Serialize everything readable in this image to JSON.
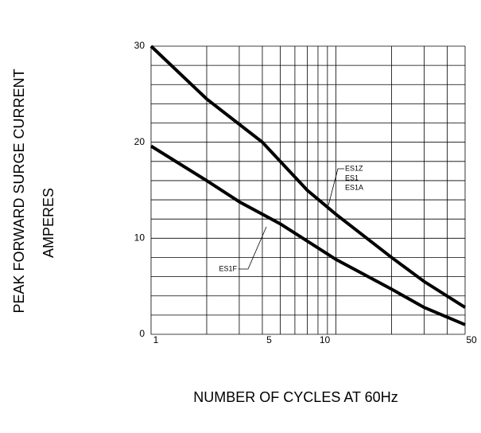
{
  "chart_data": {
    "type": "line",
    "xlabel": "NUMBER OF CYCLES AT 60Hz",
    "ylabel": [
      "PEAK FORWARD SURGE CURRENT",
      "AMPERES"
    ],
    "xscale": "log",
    "xlim": [
      1,
      50
    ],
    "xticks": [
      1,
      5,
      10,
      50
    ],
    "xgrid": [
      1,
      2,
      3,
      4,
      5,
      6,
      7,
      8,
      9,
      10,
      20,
      30,
      40,
      50
    ],
    "ylim": [
      0,
      30
    ],
    "yticks": [
      0,
      10,
      20,
      30
    ],
    "ygrid": [
      0,
      2,
      4,
      6,
      8,
      10,
      12,
      14,
      16,
      18,
      20,
      22,
      24,
      26,
      28,
      30
    ],
    "grid": true,
    "series": [
      {
        "color": "#000000",
        "x": [
          1,
          2,
          4,
          5,
          7,
          10,
          20,
          30,
          50
        ],
        "values": [
          30,
          24.5,
          20,
          18,
          15,
          12.5,
          8,
          5.5,
          2.8
        ],
        "labels": [
          "ES1Z",
          "ES1",
          "ES1A"
        ]
      },
      {
        "color": "#000000",
        "x": [
          1,
          2,
          3,
          5,
          10,
          20,
          30,
          50
        ],
        "values": [
          19.6,
          16,
          13.8,
          11.5,
          7.8,
          4.7,
          2.8,
          1
        ],
        "labels": [
          "ES1F"
        ]
      }
    ]
  }
}
